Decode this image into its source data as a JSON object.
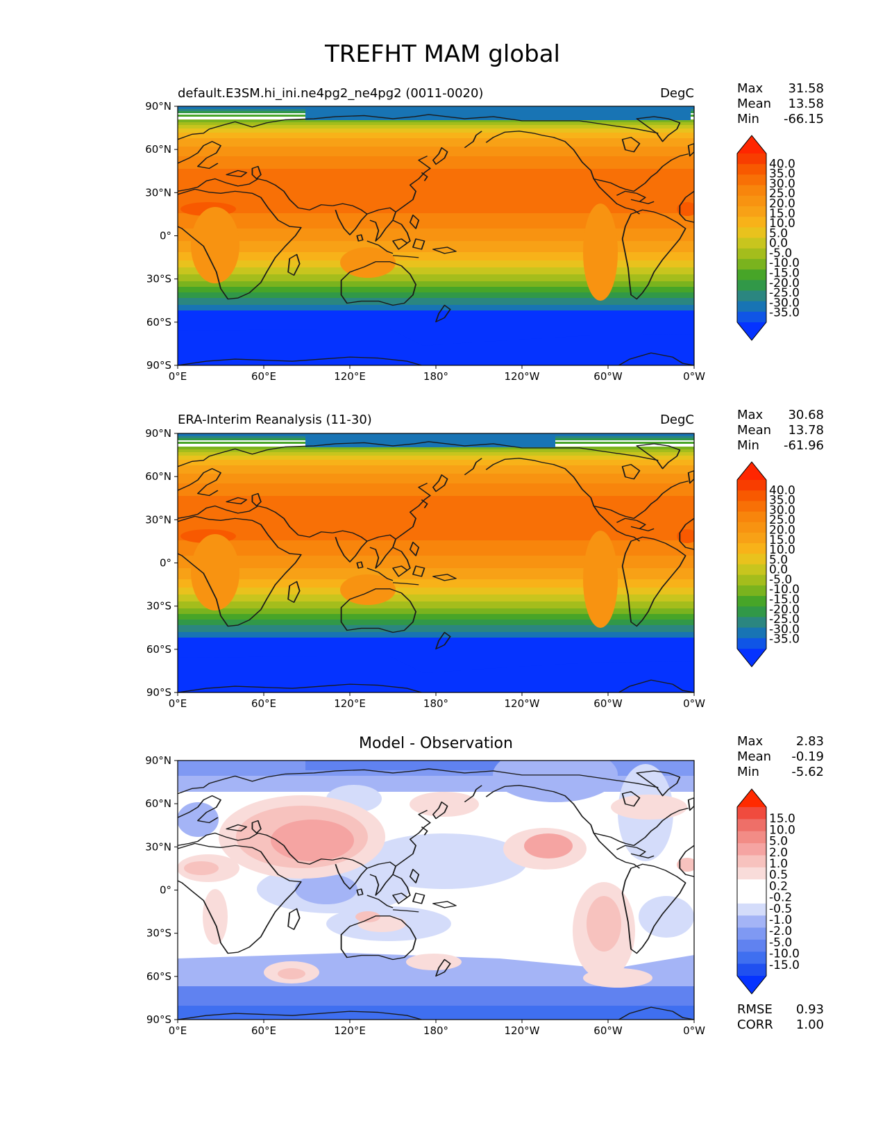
{
  "figure_title": "TREFHT MAM global",
  "colors": {
    "temperature": [
      "#0533ff",
      "#0f55e6",
      "#1874b4",
      "#2b8680",
      "#319848",
      "#47a528",
      "#7ab31e",
      "#a4bd1c",
      "#c8c51e",
      "#e9c21d",
      "#f8b219",
      "#f8a116",
      "#f89311",
      "#f8850c",
      "#f87006",
      "#f85900",
      "#f83d00",
      "#ff2600"
    ],
    "difference": [
      "#0533ff",
      "#2050f0",
      "#3f6ff0",
      "#6082f0",
      "#7f99f3",
      "#a4b4f6",
      "#d4dcfa",
      "#ffffff",
      "#ffffff",
      "#f9dcda",
      "#f7c2be",
      "#f5a4a2",
      "#f28c86",
      "#ee6f68",
      "#f04b3e",
      "#ff2a00"
    ]
  },
  "x_ticks": [
    "0°E",
    "60°E",
    "120°E",
    "180°",
    "120°W",
    "60°W",
    "0°W"
  ],
  "y_ticks": [
    "90°N",
    "60°N",
    "30°N",
    "0°",
    "30°S",
    "60°S",
    "90°S"
  ],
  "panels": [
    {
      "left_title": "default.E3SM.hi_ini.ne4pg2_ne4pg2 (0011-0020)",
      "right_title": "DegC",
      "center_title": "",
      "stats": [
        {
          "label": "Max",
          "value": "31.58"
        },
        {
          "label": "Mean",
          "value": "13.58"
        },
        {
          "label": "Min",
          "value": "-66.15"
        }
      ],
      "colorbar_labels": [
        "40.0",
        "35.0",
        "30.0",
        "25.0",
        "20.0",
        "15.0",
        "10.0",
        "5.0",
        "0.0",
        "-5.0",
        "-10.0",
        "-15.0",
        "-20.0",
        "-25.0",
        "-30.0",
        "-35.0"
      ]
    },
    {
      "left_title": "ERA-Interim Reanalysis (11-30)",
      "right_title": "DegC",
      "center_title": "",
      "stats": [
        {
          "label": "Max",
          "value": "30.68"
        },
        {
          "label": "Mean",
          "value": "13.78"
        },
        {
          "label": "Min",
          "value": "-61.96"
        }
      ],
      "colorbar_labels": [
        "40.0",
        "35.0",
        "30.0",
        "25.0",
        "20.0",
        "15.0",
        "10.0",
        "5.0",
        "0.0",
        "-5.0",
        "-10.0",
        "-15.0",
        "-20.0",
        "-25.0",
        "-30.0",
        "-35.0"
      ]
    },
    {
      "left_title": "",
      "right_title": "",
      "center_title": "Model - Observation",
      "stats": [
        {
          "label": "Max",
          "value": "2.83"
        },
        {
          "label": "Mean",
          "value": "-0.19"
        },
        {
          "label": "Min",
          "value": "-5.62"
        }
      ],
      "colorbar_labels": [
        "15.0",
        "10.0",
        "5.0",
        "2.0",
        "1.0",
        "0.5",
        "0.2",
        "-0.2",
        "-0.5",
        "-1.0",
        "-2.0",
        "-5.0",
        "-10.0",
        "-15.0"
      ],
      "bottom_stats": [
        {
          "label": "RMSE",
          "value": "0.93"
        },
        {
          "label": "CORR",
          "value": "1.00"
        }
      ]
    }
  ]
}
